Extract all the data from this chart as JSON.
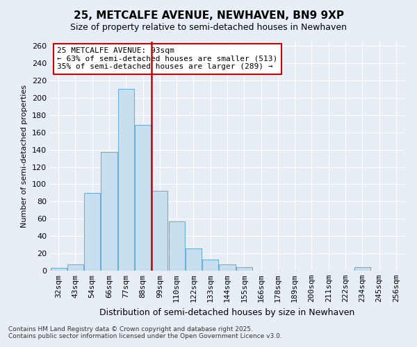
{
  "title": "25, METCALFE AVENUE, NEWHAVEN, BN9 9XP",
  "subtitle": "Size of property relative to semi-detached houses in Newhaven",
  "xlabel": "Distribution of semi-detached houses by size in Newhaven",
  "ylabel": "Number of semi-detached properties",
  "categories": [
    "32sqm",
    "43sqm",
    "54sqm",
    "66sqm",
    "77sqm",
    "88sqm",
    "99sqm",
    "110sqm",
    "122sqm",
    "133sqm",
    "144sqm",
    "155sqm",
    "166sqm",
    "178sqm",
    "189sqm",
    "200sqm",
    "211sqm",
    "222sqm",
    "234sqm",
    "245sqm",
    "256sqm"
  ],
  "values": [
    3,
    7,
    90,
    137,
    210,
    169,
    92,
    57,
    26,
    13,
    7,
    4,
    0,
    0,
    0,
    0,
    0,
    0,
    4,
    0,
    0
  ],
  "bar_color": "#c8dff0",
  "bar_edge_color": "#6baed6",
  "annotation_title": "25 METCALFE AVENUE: 93sqm",
  "annotation_line1": "← 63% of semi-detached houses are smaller (513)",
  "annotation_line2": "35% of semi-detached houses are larger (289) →",
  "annotation_box_color": "#cc0000",
  "line_x_index": 5.5,
  "ylim": [
    0,
    265
  ],
  "yticks": [
    0,
    20,
    40,
    60,
    80,
    100,
    120,
    140,
    160,
    180,
    200,
    220,
    240,
    260
  ],
  "footnote1": "Contains HM Land Registry data © Crown copyright and database right 2025.",
  "footnote2": "Contains public sector information licensed under the Open Government Licence v3.0.",
  "background_color": "#e8eef5",
  "grid_color": "#ffffff",
  "title_fontsize": 11,
  "subtitle_fontsize": 9,
  "ylabel_fontsize": 8,
  "xlabel_fontsize": 9,
  "tick_fontsize": 8,
  "annot_fontsize": 8
}
